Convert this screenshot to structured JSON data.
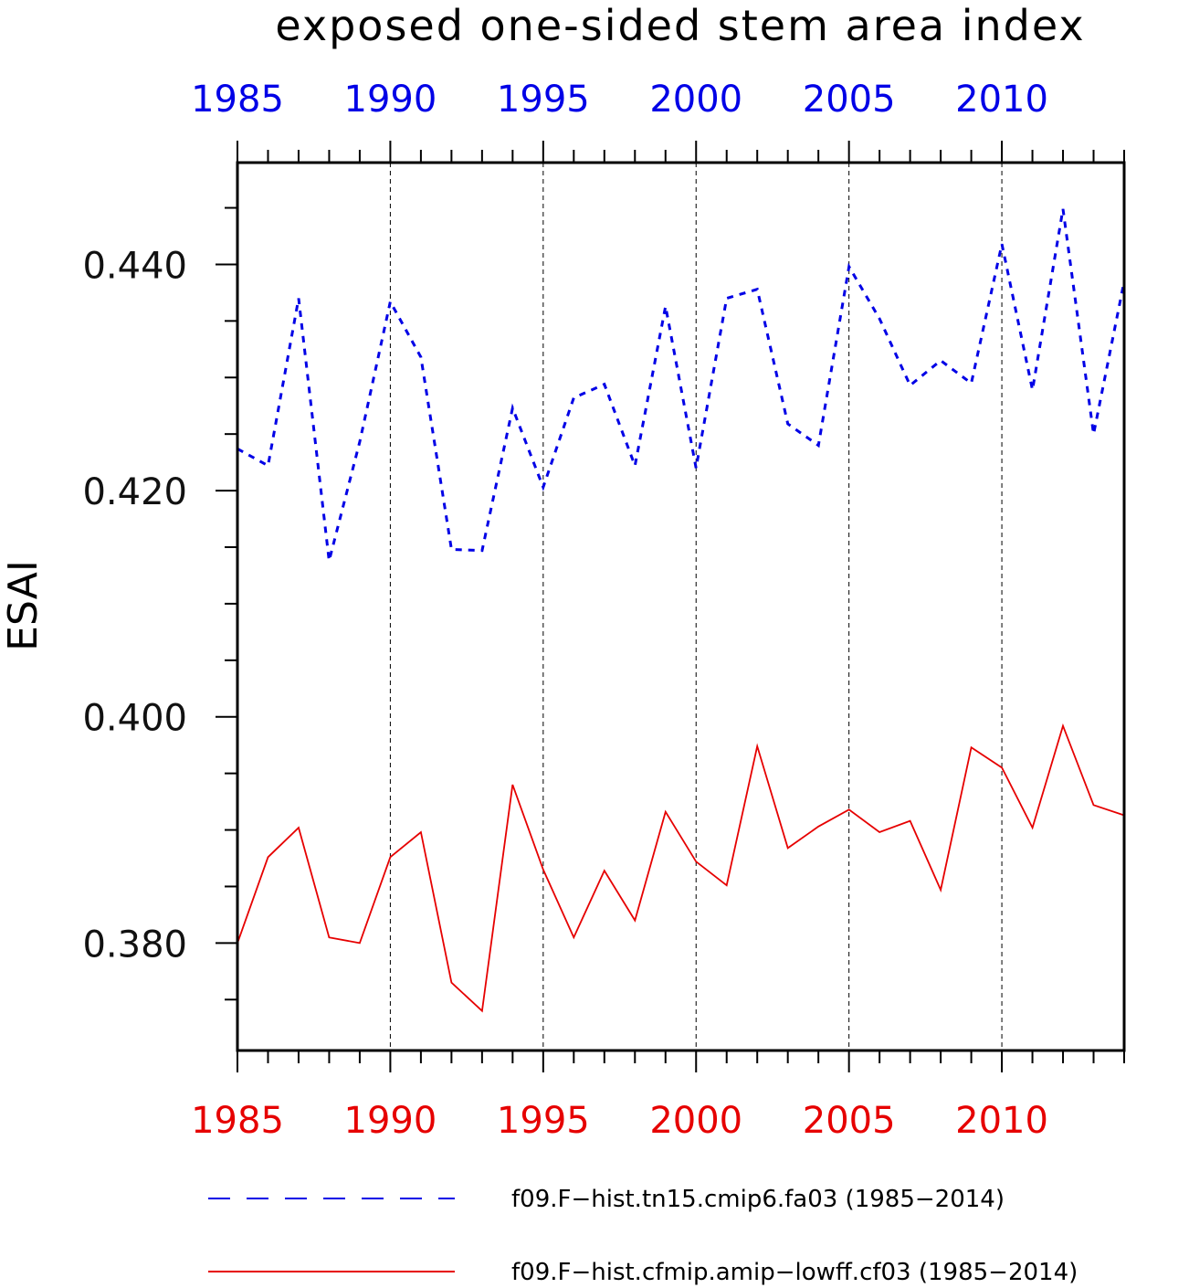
{
  "chart_data": {
    "type": "line",
    "title": "exposed one-sided stem area index",
    "ylabel": "ESAI",
    "xlabel": "",
    "xlim": [
      1985,
      2014
    ],
    "ylim": [
      0.3705,
      0.449
    ],
    "x_ticks": [
      1985,
      1990,
      1995,
      2000,
      2005,
      2010
    ],
    "y_ticks": [
      "0.380",
      "0.400",
      "0.420",
      "0.440"
    ],
    "y_tick_values": [
      0.38,
      0.4,
      0.42,
      0.44
    ],
    "y_minor_step": 0.005,
    "grid": "vertical dashed at major x ticks",
    "legend_position": "bottom",
    "x": [
      1985,
      1986,
      1987,
      1988,
      1989,
      1990,
      1991,
      1992,
      1993,
      1994,
      1995,
      1996,
      1997,
      1998,
      1999,
      2000,
      2001,
      2002,
      2003,
      2004,
      2005,
      2006,
      2007,
      2008,
      2009,
      2010,
      2011,
      2012,
      2013,
      2014
    ],
    "series": [
      {
        "name": "f09.F−hist.tn15.cmip6.fa03 (1985−2014)",
        "color": "#0000e6",
        "style": "dashed",
        "values": [
          0.4237,
          0.4222,
          0.437,
          0.4138,
          0.4243,
          0.4367,
          0.4318,
          0.4148,
          0.4147,
          0.4273,
          0.4203,
          0.4282,
          0.4294,
          0.4222,
          0.4363,
          0.422,
          0.437,
          0.4378,
          0.4259,
          0.424,
          0.4398,
          0.4352,
          0.4293,
          0.4315,
          0.4295,
          0.4418,
          0.4289,
          0.4449,
          0.425,
          0.4385
        ]
      },
      {
        "name": "f09.F−hist.cfmip.amip−lowff.cf03 (1985−2014)",
        "color": "#e60000",
        "style": "solid",
        "values": [
          0.38,
          0.3876,
          0.3902,
          0.3805,
          0.38,
          0.3876,
          0.3898,
          0.3765,
          0.374,
          0.394,
          0.3865,
          0.3805,
          0.3864,
          0.382,
          0.3916,
          0.3872,
          0.3851,
          0.3974,
          0.3884,
          0.3903,
          0.3918,
          0.3898,
          0.3908,
          0.3847,
          0.3973,
          0.3955,
          0.3902,
          0.3992,
          0.3922,
          0.3913
        ]
      }
    ],
    "top_axis_color": "#0000e6",
    "bottom_axis_color": "#e60000"
  }
}
